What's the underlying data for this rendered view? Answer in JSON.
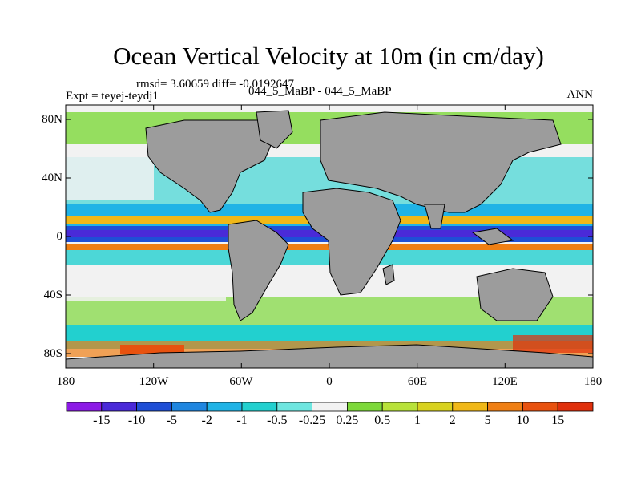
{
  "title": "Ocean Vertical Velocity at 10m (in cm/day)",
  "stats": "rmsd= 3.60659  diff= -0.0192647",
  "expt": "Expt = teyej-teydj1",
  "period": "044_5_MaBP - 044_5_MaBP",
  "season": "ANN",
  "lat_labels": [
    "80N",
    "40N",
    "0",
    "40S",
    "80S"
  ],
  "lon_labels": [
    "180",
    "120W",
    "60W",
    "0",
    "60E",
    "120E",
    "180"
  ],
  "colorbar": {
    "labels": [
      "-15",
      "-10",
      "-5",
      "-2",
      "-1",
      "-0.5",
      "-0.25",
      "0.25",
      "0.5",
      "1",
      "2",
      "5",
      "10",
      "15"
    ],
    "colors": [
      "#8c1ae6",
      "#4a2ad8",
      "#1f4fd6",
      "#1f86e0",
      "#20b3e6",
      "#22d0cf",
      "#6ee6e0",
      "#f2f2f2",
      "#7dd83a",
      "#b8e23a",
      "#d8d21f",
      "#f0b818",
      "#ef7f14",
      "#e8520f",
      "#e0300c"
    ]
  },
  "land_color": "#9c9c9c"
}
